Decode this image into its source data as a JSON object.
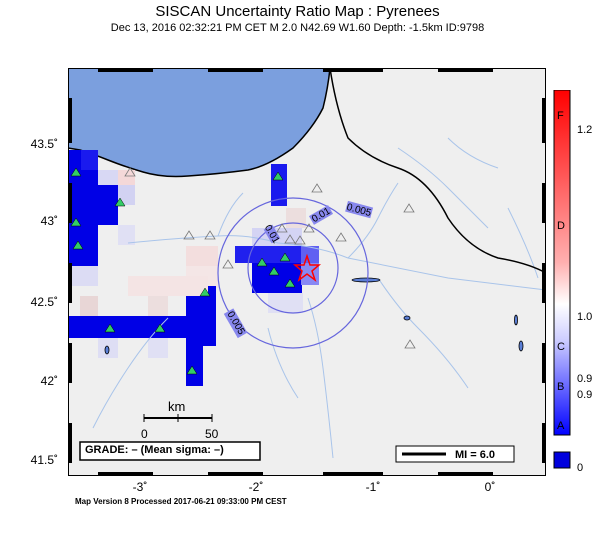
{
  "title": "SISCAN Uncertainty Ratio Map : Pyrenees",
  "subtitle": "Dec 13, 2016 02:32:21 PM CET    M 2.0    N42.69 W1.60    Depth: -1.5km    ID:9798",
  "lat_labels": [
    "43.5",
    "43",
    "42.5",
    "42",
    "41.5"
  ],
  "lon_labels": [
    "-3",
    "-2",
    "-1",
    "0"
  ],
  "degree_mark": "˚",
  "scale_bar": {
    "unit": "km",
    "start": "0",
    "end": "50"
  },
  "grade_box": "GRADE: – (Mean sigma: –)",
  "mi_box": "MI = 6.0",
  "contour_labels": [
    "0.01",
    "0.005",
    "0.01",
    "0.005"
  ],
  "footer": "Map Version 8 Processed 2017-06-21 09:33:00 PM CEST",
  "colorbar": {
    "left_letters": [
      "F",
      "D",
      "C",
      "B",
      "A"
    ],
    "right_values": [
      "1.2",
      "1.0",
      "0.9",
      "0.9",
      "0"
    ]
  },
  "colors": {
    "sea": "#7b9fde",
    "land": "#efefef",
    "high_ratio": "#ff0000",
    "low_ratio": "#0000ff",
    "contour": "#6666dd",
    "river": "#a9c4ea",
    "station_used": "#33cc66",
    "epicenter": "#ff0000"
  },
  "epicenter": {
    "lat": 42.69,
    "lon": -1.6
  }
}
